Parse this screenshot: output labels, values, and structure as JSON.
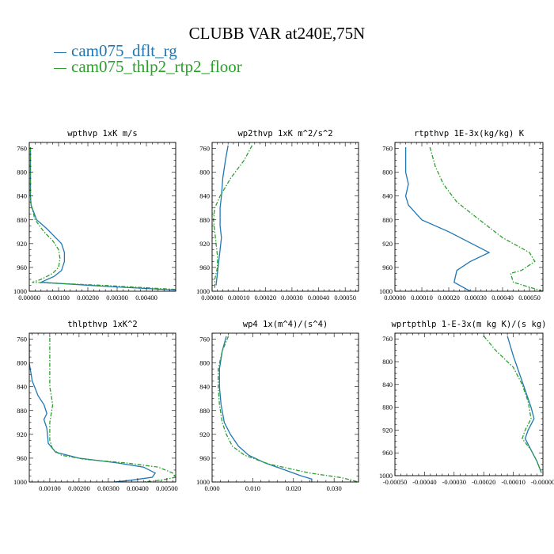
{
  "figure": {
    "title": "CLUBB VAR at240E,75N",
    "legend": [
      {
        "label": "cam075_dflt_rg",
        "color": "#1f77b4",
        "style": "solid"
      },
      {
        "label": "cam075_thlp2_rtp2_floor",
        "color": "#2ca02c",
        "style": "dashdot"
      }
    ]
  },
  "chart_data": [
    {
      "type": "line",
      "title": "wpthvp  1xK m/s",
      "xlim": [
        0,
        0.005
      ],
      "ylim": [
        1000,
        750
      ],
      "yticks": [
        760,
        800,
        840,
        880,
        920,
        960,
        1000
      ],
      "xticks": [
        0,
        0.001,
        0.002,
        0.003,
        0.004
      ],
      "xtick_labels": [
        "0.00000",
        "0.00100",
        "0.00200",
        "0.00300",
        "0.00400"
      ],
      "series": [
        {
          "name": "cam075_dflt_rg",
          "x": [
            4e-05,
            4e-05,
            4e-05,
            6e-05,
            0.00025,
            0.0006,
            0.0009,
            0.0011,
            0.0012,
            0.0012,
            0.0011,
            0.00085,
            0.0004,
            0.0027,
            0.005
          ],
          "y": [
            758,
            800,
            840,
            855,
            880,
            895,
            910,
            920,
            935,
            950,
            965,
            975,
            985,
            992,
            998
          ]
        },
        {
          "name": "cam075_thlp2_rtp2_floor",
          "x": [
            4e-05,
            4e-05,
            4e-05,
            6e-05,
            0.0002,
            0.0005,
            0.0008,
            0.001,
            0.00105,
            0.001,
            0.0008,
            0.0004,
            0.0001,
            0.0025,
            0.005
          ],
          "y": [
            758,
            800,
            840,
            855,
            880,
            900,
            915,
            930,
            945,
            960,
            970,
            980,
            985,
            990,
            997
          ]
        }
      ]
    },
    {
      "type": "line",
      "title": "wp2thvp  1xK m^2/s^2",
      "xlim": [
        0,
        0.00055
      ],
      "ylim": [
        1000,
        750
      ],
      "yticks": [
        760,
        800,
        840,
        880,
        920,
        960,
        1000
      ],
      "xticks": [
        0,
        0.0001,
        0.0002,
        0.0003,
        0.0004,
        0.0005
      ],
      "xtick_labels": [
        "0.00000",
        "0.00010",
        "0.00020",
        "0.00030",
        "0.00040",
        "0.00050"
      ],
      "series": [
        {
          "name": "cam075_dflt_rg",
          "x": [
            6e-05,
            5e-05,
            4e-05,
            3.5e-05,
            3e-05,
            3e-05,
            3e-05,
            3.5e-05,
            3e-05,
            2.5e-05,
            2e-05,
            1.5e-05
          ],
          "y": [
            755,
            780,
            810,
            840,
            860,
            880,
            890,
            910,
            930,
            950,
            970,
            990
          ]
        },
        {
          "name": "cam075_thlp2_rtp2_floor",
          "x": [
            0.00015,
            0.00012,
            7e-05,
            3e-05,
            1e-05,
            5e-06,
            1e-05,
            1.5e-05,
            2e-05,
            2e-05,
            1e-05,
            1e-05
          ],
          "y": [
            755,
            780,
            810,
            840,
            860,
            880,
            900,
            920,
            940,
            960,
            980,
            995
          ]
        }
      ]
    },
    {
      "type": "line",
      "title": "rtpthvp  1E-3x(kg/kg) K",
      "xlim": [
        0,
        0.00055
      ],
      "ylim": [
        1000,
        750
      ],
      "yticks": [
        760,
        800,
        840,
        880,
        920,
        960,
        1000
      ],
      "xticks": [
        0,
        0.0001,
        0.0002,
        0.0003,
        0.0004,
        0.0005
      ],
      "xtick_labels": [
        "0.00000",
        "0.00010",
        "0.00020",
        "0.00030",
        "0.00040",
        "0.00050"
      ],
      "series": [
        {
          "name": "cam075_dflt_rg",
          "x": [
            4e-05,
            4e-05,
            5e-05,
            4e-05,
            5e-05,
            0.0001,
            0.0002,
            0.00035,
            0.00028,
            0.00023,
            0.00022,
            0.00028
          ],
          "y": [
            758,
            800,
            820,
            840,
            855,
            880,
            900,
            935,
            950,
            965,
            985,
            1000
          ]
        },
        {
          "name": "cam075_thlp2_rtp2_floor",
          "x": [
            0.00013,
            0.00015,
            0.00018,
            0.00023,
            0.0003,
            0.0004,
            0.0005,
            0.00052,
            0.00047,
            0.00043,
            0.00044,
            0.00055
          ],
          "y": [
            758,
            790,
            820,
            850,
            875,
            910,
            935,
            950,
            965,
            970,
            985,
            1000
          ]
        }
      ]
    },
    {
      "type": "line",
      "title": "thlpthvp   1xK^2",
      "xlim": [
        0.0003,
        0.0053
      ],
      "ylim": [
        1000,
        750
      ],
      "yticks": [
        760,
        800,
        840,
        880,
        920,
        960,
        1000
      ],
      "xticks": [
        0.001,
        0.002,
        0.003,
        0.004,
        0.005
      ],
      "xtick_labels": [
        "0.00100",
        "0.00200",
        "0.00300",
        "0.00400",
        "0.00500"
      ],
      "series": [
        {
          "name": "cam075_dflt_rg",
          "x": [
            0.0003,
            0.0003,
            0.0004,
            0.0006,
            0.0008,
            0.0009,
            0.0008,
            0.0009,
            0.00095,
            0.0012,
            0.002,
            0.0033,
            0.0042,
            0.0046,
            0.0045,
            0.0038,
            0.0032
          ],
          "y": [
            758,
            800,
            830,
            855,
            870,
            885,
            895,
            910,
            935,
            950,
            960,
            968,
            975,
            985,
            992,
            997,
            1000
          ]
        },
        {
          "name": "cam075_thlp2_rtp2_floor",
          "x": [
            0.001,
            0.001,
            0.001,
            0.0011,
            0.001,
            0.001,
            0.0011,
            0.0014,
            0.0022,
            0.0036,
            0.0047,
            0.0052,
            0.0053,
            0.0048,
            0.0042
          ],
          "y": [
            758,
            800,
            840,
            870,
            900,
            930,
            945,
            955,
            962,
            968,
            975,
            985,
            992,
            997,
            1000
          ]
        }
      ]
    },
    {
      "type": "line",
      "title": "wp4   1x(m^4)/(s^4)",
      "xlim": [
        0,
        0.036
      ],
      "ylim": [
        1000,
        750
      ],
      "yticks": [
        760,
        800,
        840,
        880,
        920,
        960,
        1000
      ],
      "xticks": [
        0,
        0.01,
        0.02,
        0.03
      ],
      "xtick_labels": [
        "0.000",
        "0.010",
        "0.020",
        "0.030"
      ],
      "series": [
        {
          "name": "cam075_dflt_rg",
          "x": [
            0.0035,
            0.0025,
            0.0018,
            0.0018,
            0.0022,
            0.003,
            0.0045,
            0.0065,
            0.009,
            0.013,
            0.018,
            0.022,
            0.0245,
            0.0245
          ],
          "y": [
            755,
            780,
            810,
            840,
            870,
            900,
            920,
            940,
            955,
            968,
            980,
            990,
            995,
            1000
          ]
        },
        {
          "name": "cam075_thlp2_rtp2_floor",
          "x": [
            0.004,
            0.0025,
            0.0015,
            0.0015,
            0.0018,
            0.0025,
            0.0035,
            0.005,
            0.008,
            0.014,
            0.024,
            0.032,
            0.036
          ],
          "y": [
            755,
            780,
            810,
            840,
            870,
            900,
            920,
            940,
            955,
            970,
            985,
            993,
            1000
          ]
        }
      ]
    },
    {
      "type": "line",
      "title": "wprtpthlp   1-E-3x(m kg K)/(s kg)",
      "xlim": [
        -0.0005,
        0
      ],
      "ylim": [
        1000,
        750
      ],
      "yticks": [
        760,
        800,
        840,
        880,
        920,
        960,
        1000
      ],
      "xticks": [
        -0.0005,
        -0.0004,
        -0.0003,
        -0.0002,
        -0.0001,
        0
      ],
      "xtick_labels": [
        "-0.00050",
        "-0.00040",
        "-0.00030",
        "-0.00020",
        "-0.00010",
        "-0.00000"
      ],
      "series": [
        {
          "name": "cam075_dflt_rg",
          "x": [
            -0.00012,
            -0.0001,
            -8e-05,
            -6e-05,
            -4e-05,
            -3e-05,
            -5e-05,
            -6e-05,
            -4e-05,
            -2e-05,
            -5e-06
          ],
          "y": [
            755,
            790,
            820,
            850,
            880,
            900,
            920,
            935,
            955,
            975,
            995
          ]
        },
        {
          "name": "cam075_thlp2_rtp2_floor",
          "x": [
            -0.0002,
            -0.00016,
            -0.0001,
            -7e-05,
            -5e-05,
            -4e-05,
            -6e-05,
            -7e-05,
            -4e-05,
            -2e-05,
            -5e-06
          ],
          "y": [
            755,
            780,
            810,
            840,
            870,
            900,
            920,
            935,
            955,
            975,
            995
          ]
        }
      ]
    }
  ]
}
